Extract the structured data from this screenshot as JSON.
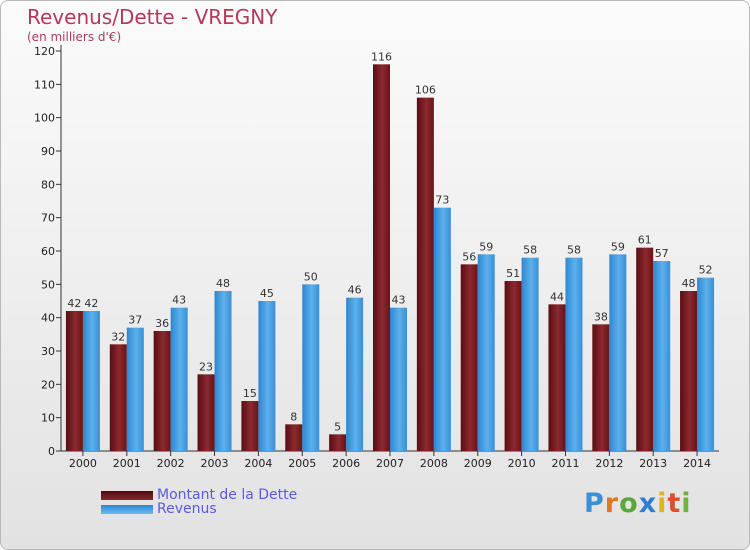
{
  "title": "Revenus/Dette - VREGNY",
  "subtitle": "(en milliers d'€)",
  "legend": {
    "debt_label": "Montant de la Dette",
    "revenue_label": "Revenus"
  },
  "logo": {
    "text": "Proxiti"
  },
  "colors": {
    "debt": "#7a1a22",
    "revenue": "#4a9fdf",
    "title": "#b5385a",
    "legend_text": "#5a5ae0"
  },
  "chart_data": {
    "type": "bar",
    "title": "Revenus/Dette - VREGNY",
    "ylabel": "(en milliers d'€)",
    "xlabel": "",
    "ylim": [
      0,
      120
    ],
    "yticks": [
      0,
      10,
      20,
      30,
      40,
      50,
      60,
      70,
      80,
      90,
      100,
      110,
      120
    ],
    "categories": [
      "2000",
      "2001",
      "2002",
      "2003",
      "2004",
      "2005",
      "2006",
      "2007",
      "2008",
      "2009",
      "2010",
      "2011",
      "2012",
      "2013",
      "2014"
    ],
    "series": [
      {
        "name": "Montant de la Dette",
        "values": [
          42,
          32,
          36,
          23,
          15,
          8,
          5,
          116,
          106,
          56,
          51,
          44,
          38,
          61,
          48
        ]
      },
      {
        "name": "Revenus",
        "values": [
          42,
          37,
          43,
          48,
          45,
          50,
          46,
          43,
          73,
          59,
          58,
          58,
          59,
          57,
          52
        ]
      }
    ],
    "legend_position": "bottom-left",
    "grid": false
  }
}
